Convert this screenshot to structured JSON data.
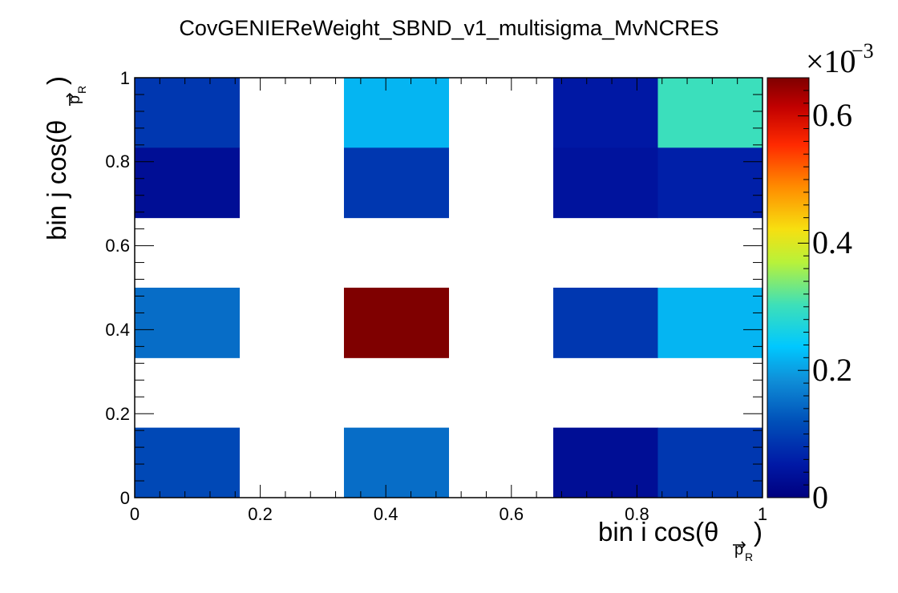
{
  "chart_data": {
    "type": "heatmap",
    "title": "CovGENIEReWeight_SBND_v1_multisigma_MvNCRES",
    "xlabel": {
      "main": "bin i cos(θ",
      "sub": "p",
      "subsub": "R",
      "close": ")"
    },
    "ylabel": {
      "main": "bin j cos(θ",
      "sub": "p",
      "subsub": "R",
      "close": ")"
    },
    "x_edges": [
      0,
      0.1667,
      0.3333,
      0.5,
      0.6667,
      0.8333,
      1.0
    ],
    "y_edges": [
      0,
      0.1667,
      0.3333,
      0.5,
      0.6667,
      0.8333,
      1.0
    ],
    "xlim": [
      0,
      1
    ],
    "ylim": [
      0,
      1
    ],
    "x_ticks": [
      "0",
      "0.2",
      "0.4",
      "0.6",
      "0.8",
      "1"
    ],
    "y_ticks": [
      "0",
      "0.2",
      "0.4",
      "0.6",
      "0.8",
      "1"
    ],
    "z_range": [
      0,
      0.00066
    ],
    "z_multiplier": "×10",
    "z_exponent": "−3",
    "colorbar_ticks": [
      "0",
      "0.2",
      "0.4",
      "0.6"
    ],
    "cells": [
      {
        "x": 0.0833,
        "y": 0.9167,
        "z": 9e-05
      },
      {
        "x": 0.4167,
        "y": 0.9167,
        "z": 0.00022
      },
      {
        "x": 0.75,
        "y": 0.9167,
        "z": 5e-05
      },
      {
        "x": 0.9167,
        "y": 0.9167,
        "z": 0.0003
      },
      {
        "x": 0.0833,
        "y": 0.75,
        "z": 3e-05
      },
      {
        "x": 0.4167,
        "y": 0.75,
        "z": 9e-05
      },
      {
        "x": 0.75,
        "y": 0.75,
        "z": 4e-05
      },
      {
        "x": 0.9167,
        "y": 0.75,
        "z": 6e-05
      },
      {
        "x": 0.0833,
        "y": 0.4167,
        "z": 0.00015
      },
      {
        "x": 0.4167,
        "y": 0.4167,
        "z": 0.00066
      },
      {
        "x": 0.75,
        "y": 0.4167,
        "z": 9e-05
      },
      {
        "x": 0.9167,
        "y": 0.4167,
        "z": 0.00022
      },
      {
        "x": 0.0833,
        "y": 0.0833,
        "z": 0.00011
      },
      {
        "x": 0.4167,
        "y": 0.0833,
        "z": 0.00015
      },
      {
        "x": 0.75,
        "y": 0.0833,
        "z": 3e-05
      },
      {
        "x": 0.9167,
        "y": 0.0833,
        "z": 9e-05
      }
    ]
  }
}
